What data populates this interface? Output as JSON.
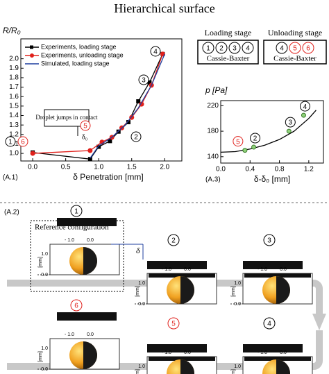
{
  "title": "Hierarchical surface",
  "chart_data": [
    {
      "type": "line",
      "panel": "(A.1)",
      "ylabel": "R/R₀",
      "xlabel": "δ  Penetration [mm]",
      "xlim": [
        -0.18,
        2.26
      ],
      "ylim": [
        0.92,
        2.21
      ],
      "xticks": [
        {
          "value": 0,
          "label": "0.0"
        },
        {
          "value": 0.5,
          "label": "0.5"
        },
        {
          "value": 1,
          "label": "1.0"
        },
        {
          "value": 1.5,
          "label": "1.5"
        },
        {
          "value": 2,
          "label": "2.0"
        }
      ],
      "yticks": [
        {
          "value": 1,
          "label": "1.0"
        },
        {
          "value": 1.1,
          "label": "1.1"
        },
        {
          "value": 1.2,
          "label": "1.2"
        },
        {
          "value": 1.3,
          "label": "1.3"
        },
        {
          "value": 1.4,
          "label": "1.4"
        },
        {
          "value": 1.5,
          "label": "1.5"
        },
        {
          "value": 1.6,
          "label": "1.6"
        },
        {
          "value": 1.7,
          "label": "1.7"
        },
        {
          "value": 1.8,
          "label": "1.8"
        },
        {
          "value": 1.9,
          "label": "1.9"
        },
        {
          "value": 2,
          "label": "2.0"
        }
      ],
      "series": [
        {
          "name": "Experiments, loading stage",
          "color": "#000000",
          "marker": "square",
          "x": [
            0,
            0.87,
            1.0,
            1.17,
            1.3,
            1.45,
            1.6,
            1.77,
            1.97
          ],
          "values": [
            1.01,
            0.94,
            1.07,
            1.13,
            1.23,
            1.33,
            1.55,
            1.75,
            2.05
          ]
        },
        {
          "name": "Experiments, unloading stage",
          "color": "#e0201b",
          "marker": "circle",
          "x": [
            0,
            0.87,
            1.05,
            1.2,
            1.35,
            1.5,
            1.65,
            1.8,
            1.97
          ],
          "values": [
            1.0,
            1.03,
            1.12,
            1.17,
            1.27,
            1.38,
            1.52,
            1.72,
            2.05
          ]
        },
        {
          "name": "Simulated, loading stage",
          "color": "#1f3f9f",
          "marker": "none",
          "x": [
            0.87,
            1.0,
            1.2,
            1.4,
            1.6,
            1.8,
            2.0
          ],
          "values": [
            0.95,
            1.08,
            1.17,
            1.3,
            1.48,
            1.72,
            2.05
          ]
        }
      ],
      "annotation": "Droplet jumps in contact",
      "delta_label": "δ₀",
      "state_labels": [
        {
          "text": "1",
          "color": "#000000"
        },
        {
          "text": "6",
          "color": "#e0201b"
        },
        {
          "text": "5",
          "color": "#e0201b"
        },
        {
          "text": "2",
          "color": "#000000"
        },
        {
          "text": "3",
          "color": "#000000"
        },
        {
          "text": "4",
          "color": "#000000"
        }
      ]
    },
    {
      "type": "scatter",
      "panel": "(A.3)",
      "ylabel": "p [Pa]",
      "xlabel": "δ-δ₀ [mm]",
      "xlim": [
        0,
        1.4
      ],
      "ylim": [
        130,
        228
      ],
      "xticks": [
        {
          "value": 0,
          "label": "0.0"
        },
        {
          "value": 0.4,
          "label": "0.4"
        },
        {
          "value": 0.8,
          "label": "0.8"
        },
        {
          "value": 1.2,
          "label": "1.2"
        }
      ],
      "yticks": [
        140,
        180,
        220
      ],
      "series": [
        {
          "color": "#000000",
          "line": true,
          "x": [
            0,
            0.2,
            0.4,
            0.6,
            0.8,
            1.0,
            1.2,
            1.3
          ],
          "values": [
            147,
            148,
            152,
            158,
            167,
            180,
            200,
            213
          ]
        },
        {
          "color": "#8fd17a",
          "line": false,
          "x": [
            0.33,
            0.45,
            0.93,
            1.13
          ],
          "values": [
            150,
            155,
            180,
            205
          ],
          "point_labels": [
            "5",
            "2",
            "3",
            "4"
          ],
          "point_label_colors": [
            "#e0201b",
            "#000000",
            "#000000",
            "#000000"
          ]
        }
      ]
    }
  ],
  "legend_boxes": [
    {
      "title": "Loading stage",
      "states": [
        "1",
        "2",
        "3",
        "4"
      ],
      "state_colors": [
        "#000000",
        "#000000",
        "#000000",
        "#000000"
      ],
      "regime": "Cassie-Baxter"
    },
    {
      "title": "Unloading stage",
      "states": [
        "4",
        "5",
        "6"
      ],
      "state_colors": [
        "#000000",
        "#e0201b",
        "#e0201b"
      ],
      "regime": "Cassie-Baxter"
    }
  ],
  "figure": {
    "label": "(A.2)",
    "reference": "Reference configuration",
    "delta": "δ",
    "top_ticks": [
      "- 1.0",
      "0.0"
    ],
    "side_ticks": [
      "1.0",
      "0.0"
    ],
    "unit": "[mm]",
    "panels": [
      {
        "state": "1",
        "color": "#000000"
      },
      {
        "state": "2",
        "color": "#000000"
      },
      {
        "state": "3",
        "color": "#000000"
      },
      {
        "state": "6",
        "color": "#e0201b"
      },
      {
        "state": "5",
        "color": "#e0201b"
      },
      {
        "state": "4",
        "color": "#000000"
      }
    ]
  }
}
